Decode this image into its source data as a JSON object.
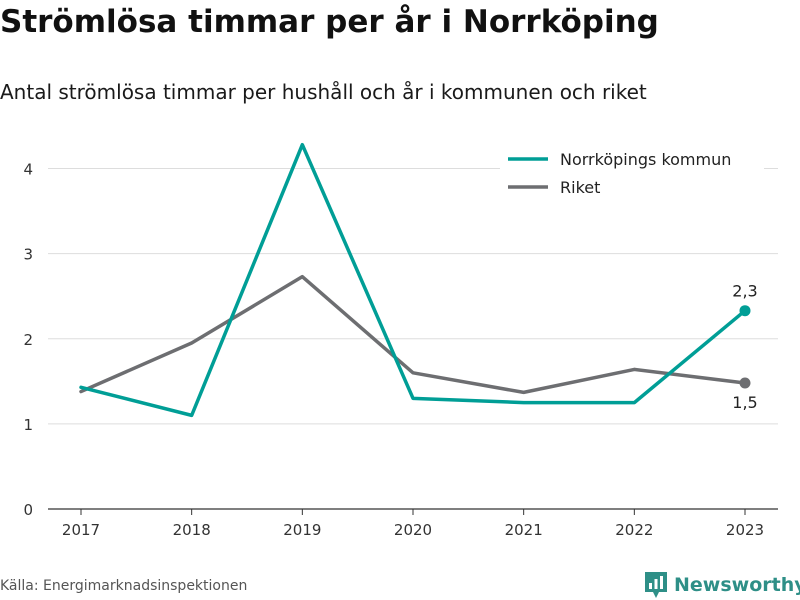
{
  "header": {
    "title": "Strömlösa timmar per år i Norrköping",
    "subtitle": "Antal strömlösa timmar per hushåll och år i kommunen och riket"
  },
  "footer": {
    "source": "Källa: Energimarknadsinspektionen",
    "brand": "Newsworthy",
    "brand_icon": "newsworthy-logo-icon"
  },
  "colors": {
    "norrkoping": "#009e96",
    "riket": "#6d6e71",
    "grid": "#dddddd",
    "axis": "#333333",
    "brand": "#2e8f87"
  },
  "chart_data": {
    "type": "line",
    "categories": [
      "2017",
      "2018",
      "2019",
      "2020",
      "2021",
      "2022",
      "2023"
    ],
    "series": [
      {
        "name": "Norrköpings kommun",
        "values": [
          1.43,
          1.1,
          4.28,
          1.3,
          1.25,
          1.25,
          2.33
        ]
      },
      {
        "name": "Riket",
        "values": [
          1.38,
          1.95,
          2.73,
          1.6,
          1.37,
          1.64,
          1.48
        ]
      }
    ],
    "yticks": [
      "0",
      "1",
      "2",
      "3",
      "4"
    ],
    "ylim": [
      0,
      4.5
    ],
    "grid": true,
    "legend_position": "top-right",
    "end_labels": [
      "2,3",
      "1,5"
    ],
    "xlabel": "",
    "ylabel": ""
  }
}
